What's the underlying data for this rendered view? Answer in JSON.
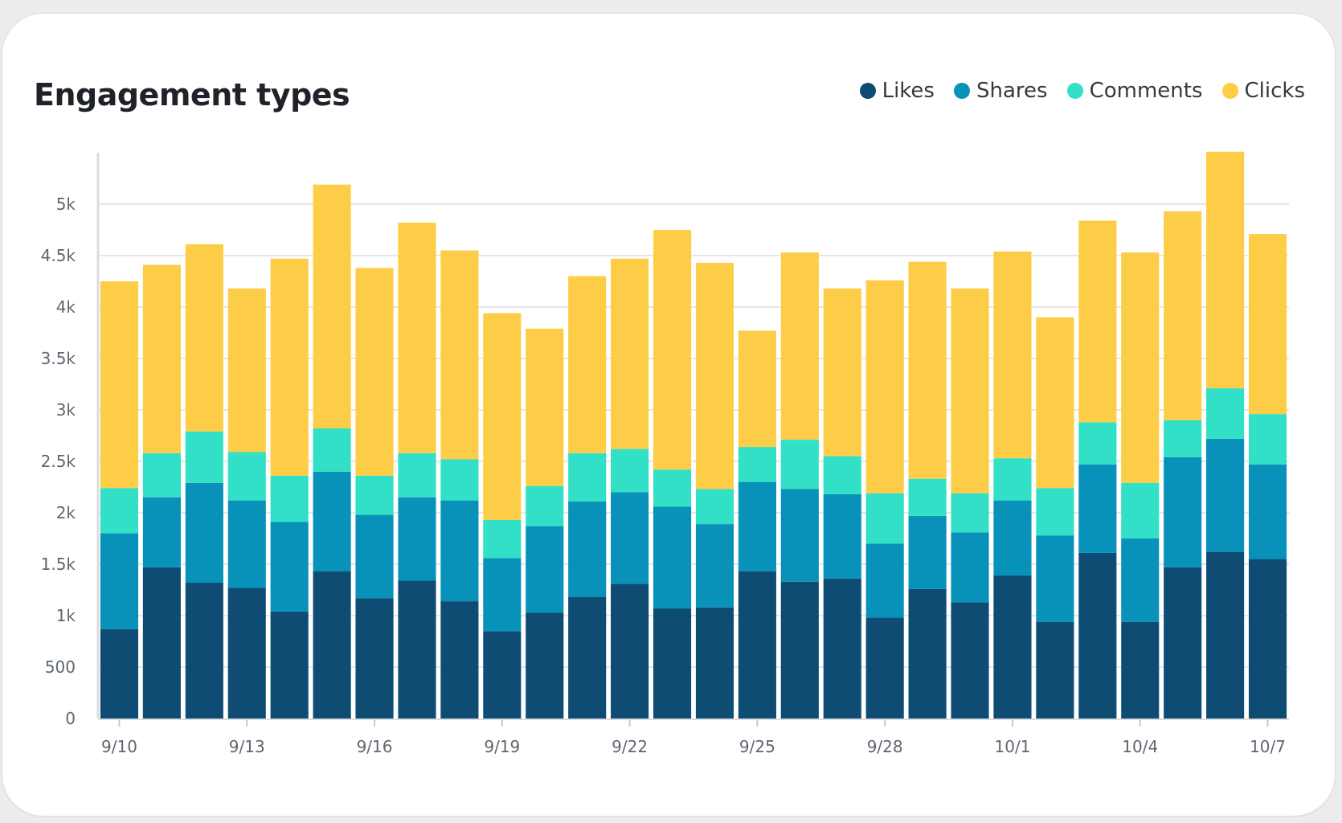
{
  "card": {
    "title": "Engagement types"
  },
  "legend": [
    {
      "label": "Likes",
      "color": "#0e4c74"
    },
    {
      "label": "Shares",
      "color": "#0891b9"
    },
    {
      "label": "Comments",
      "color": "#31e0c6"
    },
    {
      "label": "Clicks",
      "color": "#fecd47"
    }
  ],
  "chart_data": {
    "type": "bar",
    "stacked": true,
    "title": "Engagement types",
    "xlabel": "",
    "ylabel": "",
    "ylim": [
      0,
      5500
    ],
    "yticks": [
      0,
      500,
      1000,
      1500,
      2000,
      2500,
      3000,
      3500,
      4000,
      4500,
      5000
    ],
    "ytick_labels": [
      "0",
      "500",
      "1k",
      "1.5k",
      "2k",
      "2.5k",
      "3k",
      "3.5k",
      "4k",
      "4.5k",
      "5k"
    ],
    "categories": [
      "9/10",
      "9/11",
      "9/12",
      "9/13",
      "9/14",
      "9/15",
      "9/16",
      "9/17",
      "9/18",
      "9/19",
      "9/20",
      "9/21",
      "9/22",
      "9/23",
      "9/24",
      "9/25",
      "9/26",
      "9/27",
      "9/28",
      "9/29",
      "9/30",
      "10/1",
      "10/2",
      "10/3",
      "10/4",
      "10/5",
      "10/6",
      "10/7"
    ],
    "xtick_labels": [
      "9/10",
      "9/13",
      "9/16",
      "9/19",
      "9/22",
      "9/25",
      "9/28",
      "10/1",
      "10/4",
      "10/7"
    ],
    "grid": true,
    "legend_position": "top-right",
    "series": [
      {
        "name": "Likes",
        "color": "#0e4c74",
        "values": [
          870,
          1470,
          1320,
          1270,
          1040,
          1430,
          1170,
          1340,
          1140,
          850,
          1030,
          1180,
          1310,
          1070,
          1080,
          1430,
          1330,
          1360,
          980,
          1260,
          1130,
          1390,
          940,
          1610,
          940,
          1470,
          1620,
          1550
        ]
      },
      {
        "name": "Shares",
        "color": "#0891b9",
        "values": [
          930,
          680,
          970,
          850,
          870,
          970,
          810,
          810,
          980,
          710,
          840,
          930,
          890,
          990,
          810,
          870,
          900,
          820,
          720,
          710,
          680,
          730,
          840,
          860,
          810,
          1070,
          1100,
          920
        ]
      },
      {
        "name": "Comments",
        "color": "#31e0c6",
        "values": [
          440,
          430,
          500,
          470,
          450,
          420,
          380,
          430,
          400,
          370,
          390,
          470,
          420,
          360,
          340,
          340,
          480,
          370,
          490,
          360,
          380,
          410,
          460,
          410,
          540,
          360,
          490,
          490
        ]
      },
      {
        "name": "Clicks",
        "color": "#fecd47",
        "values": [
          2010,
          1830,
          1820,
          1590,
          2110,
          2370,
          2020,
          2240,
          2030,
          2010,
          1530,
          1720,
          1850,
          2330,
          2200,
          1130,
          1820,
          1630,
          2070,
          2110,
          1990,
          2010,
          1660,
          1960,
          2240,
          2030,
          2300,
          1750
        ]
      }
    ]
  }
}
